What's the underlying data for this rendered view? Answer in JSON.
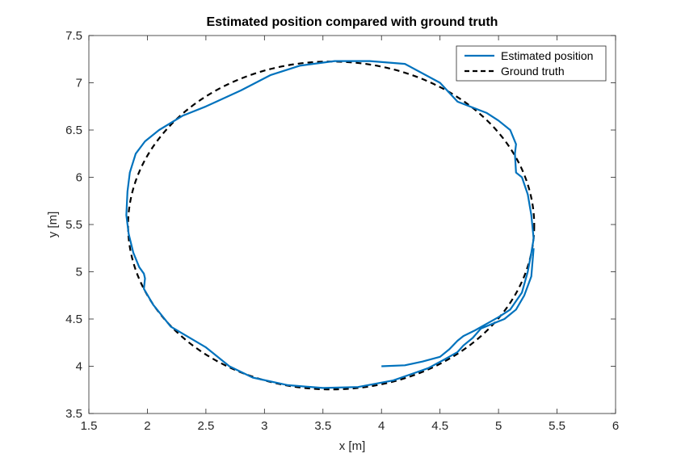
{
  "chart_data": {
    "type": "line",
    "title": "Estimated position compared with ground truth",
    "xlabel": "x [m]",
    "ylabel": "y [m]",
    "xlim": [
      1.5,
      6
    ],
    "ylim": [
      3.5,
      7.5
    ],
    "xticks": [
      1.5,
      2,
      2.5,
      3,
      3.5,
      4,
      4.5,
      5,
      5.5,
      6
    ],
    "yticks": [
      3.5,
      4,
      4.5,
      5,
      5.5,
      6,
      6.5,
      7,
      7.5
    ],
    "xtick_labels": [
      "1.5",
      "2",
      "2.5",
      "3",
      "3.5",
      "4",
      "4.5",
      "5",
      "5.5",
      "6"
    ],
    "ytick_labels": [
      "3.5",
      "4",
      "4.5",
      "5",
      "5.5",
      "6",
      "6.5",
      "7",
      "7.5"
    ],
    "grid": false,
    "legend_position": "top-right",
    "series": [
      {
        "name": "Estimated position",
        "color": "#0072BD",
        "style": "solid",
        "x": [
          4.0,
          4.2,
          4.35,
          4.5,
          4.58,
          4.65,
          4.7,
          4.8,
          4.9,
          5.0,
          5.1,
          5.2,
          5.25,
          5.28,
          5.3,
          5.28,
          5.25,
          5.2,
          5.15,
          5.14,
          5.15,
          5.1,
          5.0,
          4.9,
          4.65,
          4.5,
          4.2,
          3.9,
          3.6,
          3.3,
          3.05,
          2.8,
          2.5,
          2.3,
          2.1,
          1.98,
          1.9,
          1.85,
          1.83,
          1.82,
          1.84,
          1.88,
          1.93,
          1.97,
          1.98,
          1.97,
          2.05,
          2.2,
          2.5,
          2.55,
          2.7,
          2.9,
          3.2,
          3.5,
          3.8,
          4.1,
          4.4,
          4.55,
          4.65,
          4.7,
          4.78,
          4.85,
          4.95,
          5.05,
          5.15,
          5.22,
          5.28,
          5.3
        ],
        "y": [
          4.0,
          4.01,
          4.05,
          4.1,
          4.18,
          4.27,
          4.32,
          4.38,
          4.45,
          4.52,
          4.6,
          4.78,
          5.0,
          5.2,
          5.35,
          5.6,
          5.82,
          6.0,
          6.05,
          6.25,
          6.35,
          6.5,
          6.6,
          6.68,
          6.8,
          7.0,
          7.2,
          7.23,
          7.23,
          7.18,
          7.08,
          6.92,
          6.75,
          6.65,
          6.5,
          6.38,
          6.25,
          6.05,
          5.85,
          5.6,
          5.4,
          5.2,
          5.05,
          4.98,
          4.93,
          4.82,
          4.65,
          4.42,
          4.2,
          4.15,
          4.0,
          3.88,
          3.8,
          3.77,
          3.78,
          3.85,
          3.98,
          4.08,
          4.15,
          4.22,
          4.3,
          4.4,
          4.45,
          4.5,
          4.6,
          4.75,
          4.95,
          5.25
        ]
      },
      {
        "name": "Ground truth",
        "color": "#000000",
        "style": "dashed",
        "x": [],
        "y": []
      }
    ],
    "ground_truth_ellipse": {
      "center_x": 3.57,
      "center_y": 5.49,
      "radius_x": 1.735,
      "radius_y": 1.735,
      "radius_y_data": 1.735
    }
  }
}
